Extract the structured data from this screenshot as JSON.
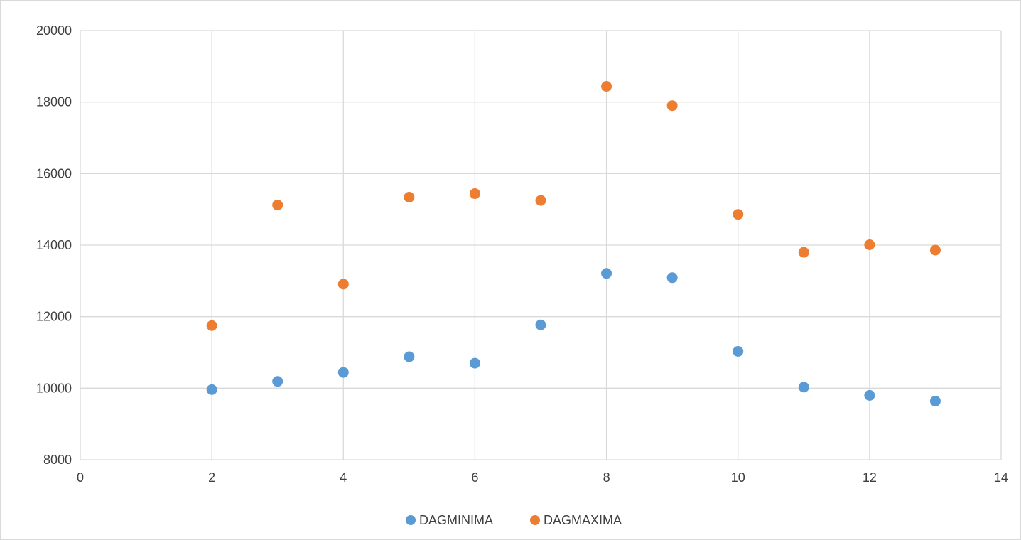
{
  "chart_data": {
    "type": "scatter",
    "title": "",
    "xlabel": "",
    "ylabel": "",
    "xlim": [
      0,
      14
    ],
    "ylim": [
      8000,
      20000
    ],
    "x_ticks": [
      0,
      2,
      4,
      6,
      8,
      10,
      12,
      14
    ],
    "y_ticks": [
      8000,
      10000,
      12000,
      14000,
      16000,
      18000,
      20000
    ],
    "grid": true,
    "legend_position": "bottom",
    "series": [
      {
        "name": "DAGMINIMA",
        "color": "#5b9bd5",
        "points": [
          {
            "x": 2,
            "y": 9960
          },
          {
            "x": 3,
            "y": 10190
          },
          {
            "x": 4,
            "y": 10440
          },
          {
            "x": 5,
            "y": 10880
          },
          {
            "x": 6,
            "y": 10700
          },
          {
            "x": 7,
            "y": 11770
          },
          {
            "x": 8,
            "y": 13210
          },
          {
            "x": 9,
            "y": 13090
          },
          {
            "x": 10,
            "y": 11030
          },
          {
            "x": 11,
            "y": 10030
          },
          {
            "x": 12,
            "y": 9800
          },
          {
            "x": 13,
            "y": 9640
          }
        ]
      },
      {
        "name": "DAGMAXIMA",
        "color": "#ed7d31",
        "points": [
          {
            "x": 2,
            "y": 11750
          },
          {
            "x": 3,
            "y": 15120
          },
          {
            "x": 4,
            "y": 12910
          },
          {
            "x": 5,
            "y": 15340
          },
          {
            "x": 6,
            "y": 15440
          },
          {
            "x": 7,
            "y": 15250
          },
          {
            "x": 8,
            "y": 18440
          },
          {
            "x": 9,
            "y": 17900
          },
          {
            "x": 10,
            "y": 14860
          },
          {
            "x": 11,
            "y": 13800
          },
          {
            "x": 12,
            "y": 14010
          },
          {
            "x": 13,
            "y": 13860
          }
        ]
      }
    ]
  }
}
